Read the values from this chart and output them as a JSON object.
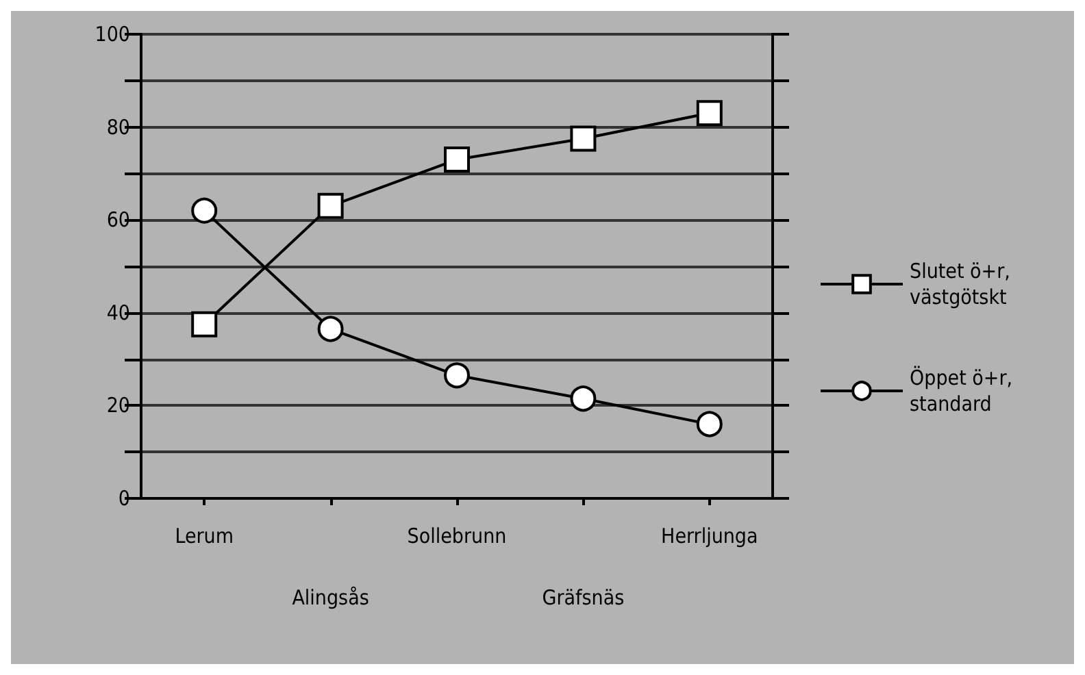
{
  "chart_data": {
    "type": "line",
    "categories": [
      "Lerum",
      "Alingsås",
      "Sollebrunn",
      "Gräfsnäs",
      "Herrljunga"
    ],
    "series": [
      {
        "name": "Slutet ö+r, västgötskt",
        "color": "#000000",
        "marker": "square",
        "values": [
          37.5,
          63,
          73,
          77.5,
          83
        ]
      },
      {
        "name": "Öppet ö+r, standard",
        "color": "#000000",
        "marker": "circle",
        "values": [
          62,
          36.5,
          26.5,
          21.5,
          16
        ]
      }
    ],
    "ylim": [
      0,
      100
    ],
    "yticks": [
      0,
      {
        "value": 10,
        "label": null
      },
      20,
      {
        "value": 30,
        "label": null
      },
      40,
      {
        "value": 50,
        "label": null
      },
      60,
      {
        "value": 70,
        "label": null
      },
      80,
      {
        "value": 90,
        "label": null
      },
      100
    ],
    "grid": "y",
    "legend": "right",
    "line_style": "solid"
  }
}
